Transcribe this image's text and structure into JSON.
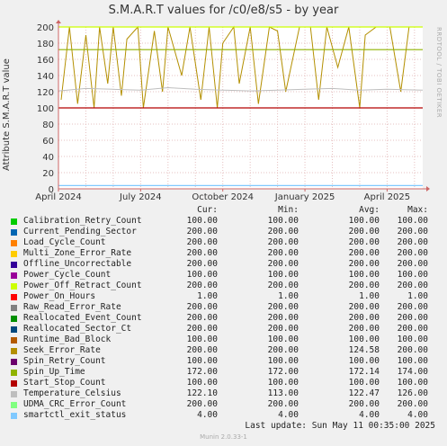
{
  "title": "S.M.A.R.T values for /c0/e8/s5 - by year",
  "ylabel": "Attribute S.M.A.R.T value",
  "sidebar_text": "RRDTOOL / TOBI OETIKER",
  "legend_headers": {
    "cur": "Cur:",
    "min": "Min:",
    "avg": "Avg:",
    "max": "Max:"
  },
  "legend": [
    {
      "name": "Calibration_Retry_Count",
      "color": "#00cc00",
      "cur": "100.00",
      "min": "100.00",
      "avg": "100.00",
      "max": "100.00"
    },
    {
      "name": "Current_Pending_Sector",
      "color": "#0066b3",
      "cur": "200.00",
      "min": "200.00",
      "avg": "200.00",
      "max": "200.00"
    },
    {
      "name": "Load_Cycle_Count",
      "color": "#ff8000",
      "cur": "200.00",
      "min": "200.00",
      "avg": "200.00",
      "max": "200.00"
    },
    {
      "name": "Multi_Zone_Error_Rate",
      "color": "#ffcc00",
      "cur": "200.00",
      "min": "200.00",
      "avg": "200.00",
      "max": "200.00"
    },
    {
      "name": "Offline_Uncorrectable",
      "color": "#330099",
      "cur": "200.00",
      "min": "200.00",
      "avg": "200.00",
      "max": "200.00"
    },
    {
      "name": "Power_Cycle_Count",
      "color": "#990099",
      "cur": "100.00",
      "min": "100.00",
      "avg": "100.00",
      "max": "100.00"
    },
    {
      "name": "Power_Off_Retract_Count",
      "color": "#ccff00",
      "cur": "200.00",
      "min": "200.00",
      "avg": "200.00",
      "max": "200.00"
    },
    {
      "name": "Power_On_Hours",
      "color": "#ff0000",
      "cur": "1.00",
      "min": "1.00",
      "avg": "1.00",
      "max": "1.00"
    },
    {
      "name": "Raw_Read_Error_Rate",
      "color": "#808080",
      "cur": "200.00",
      "min": "200.00",
      "avg": "200.00",
      "max": "200.00"
    },
    {
      "name": "Reallocated_Event_Count",
      "color": "#008f00",
      "cur": "200.00",
      "min": "200.00",
      "avg": "200.00",
      "max": "200.00"
    },
    {
      "name": "Reallocated_Sector_Ct",
      "color": "#00487d",
      "cur": "200.00",
      "min": "200.00",
      "avg": "200.00",
      "max": "200.00"
    },
    {
      "name": "Runtime_Bad_Block",
      "color": "#b35a00",
      "cur": "100.00",
      "min": "100.00",
      "avg": "100.00",
      "max": "100.00"
    },
    {
      "name": "Seek_Error_Rate",
      "color": "#b38f00",
      "cur": "200.00",
      "min": "200.00",
      "avg": "124.58",
      "max": "200.00"
    },
    {
      "name": "Spin_Retry_Count",
      "color": "#6b006b",
      "cur": "100.00",
      "min": "100.00",
      "avg": "100.00",
      "max": "100.00"
    },
    {
      "name": "Spin_Up_Time",
      "color": "#8fb300",
      "cur": "172.00",
      "min": "172.00",
      "avg": "172.14",
      "max": "174.00"
    },
    {
      "name": "Start_Stop_Count",
      "color": "#b30000",
      "cur": "100.00",
      "min": "100.00",
      "avg": "100.00",
      "max": "100.00"
    },
    {
      "name": "Temperature_Celsius",
      "color": "#bebebe",
      "cur": "122.10",
      "min": "113.00",
      "avg": "122.47",
      "max": "126.00"
    },
    {
      "name": "UDMA_CRC_Error_Count",
      "color": "#80ff80",
      "cur": "200.00",
      "min": "200.00",
      "avg": "200.00",
      "max": "200.00"
    },
    {
      "name": "smartctl_exit_status",
      "color": "#80c9ff",
      "cur": "4.00",
      "min": "4.00",
      "avg": "4.00",
      "max": "4.00"
    }
  ],
  "last_update": "Last update:  Sun May 11 00:35:00 2025",
  "footer": "Munin 2.0.33-1",
  "chart_data": {
    "type": "line",
    "ylim": [
      0,
      200
    ],
    "y_ticks": [
      "0",
      "20",
      "40",
      "60",
      "80",
      "100",
      "120",
      "140",
      "160",
      "180",
      "200"
    ],
    "x_tick_labels": [
      "April 2024",
      "July 2024",
      "October 2024",
      "January 2025",
      "April 2025"
    ],
    "x_tick_months": [
      0,
      3,
      6,
      9,
      12
    ],
    "x_range_months": [
      0,
      13.3
    ],
    "grid": true,
    "series": [
      {
        "name": "Seek_Error_Rate",
        "style": "spiky",
        "x_months": [
          0.1,
          0.4,
          0.7,
          1.0,
          1.3,
          1.5,
          1.8,
          2.0,
          2.3,
          2.5,
          2.9,
          3.1,
          3.5,
          3.8,
          4.0,
          4.5,
          4.8,
          5.2,
          5.5,
          5.8,
          6.0,
          6.4,
          6.6,
          7.0,
          7.3,
          7.7,
          8.0,
          8.3,
          8.8,
          9.2,
          9.5,
          9.8,
          10.2,
          10.6,
          11.0,
          11.2,
          11.6,
          12.1,
          12.5,
          12.8,
          13.1
        ],
        "values": [
          110,
          200,
          105,
          190,
          100,
          200,
          130,
          200,
          115,
          185,
          200,
          100,
          195,
          120,
          200,
          140,
          200,
          110,
          200,
          100,
          180,
          200,
          130,
          200,
          105,
          200,
          195,
          120,
          200,
          200,
          110,
          200,
          150,
          200,
          100,
          190,
          200,
          200,
          120,
          200,
          200
        ]
      },
      {
        "name": "Power_Off_Retract_Count",
        "style": "flat",
        "values": [
          200
        ]
      },
      {
        "name": "Spin_Up_Time",
        "style": "flat",
        "values": [
          172
        ]
      },
      {
        "name": "Temperature_Celsius",
        "style": "wavy",
        "x_months": [
          0,
          1,
          2,
          3,
          4,
          5,
          6,
          7,
          8,
          9,
          10,
          11,
          12,
          13.3
        ],
        "values": [
          121,
          124,
          123,
          122,
          125,
          123,
          122,
          121,
          122,
          123,
          124,
          122,
          123,
          122
        ]
      },
      {
        "name": "Start_Stop_Count",
        "style": "flat",
        "values": [
          100
        ]
      },
      {
        "name": "smartctl_exit_status",
        "style": "flat",
        "values": [
          4
        ]
      }
    ]
  }
}
